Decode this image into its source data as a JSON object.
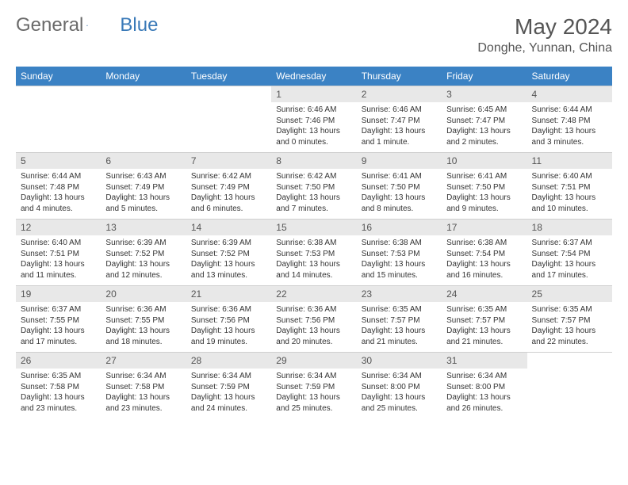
{
  "brand": {
    "part1": "General",
    "part2": "Blue"
  },
  "title": "May 2024",
  "location": "Donghe, Yunnan, China",
  "colors": {
    "header_bg": "#3b82c4",
    "header_text": "#ffffff",
    "daynum_bg": "#e8e8e8",
    "text": "#333333",
    "title_text": "#555555",
    "logo_gray": "#6a6a6a",
    "logo_blue": "#3a7ab8",
    "border": "#cfcfcf"
  },
  "weekdays": [
    "Sunday",
    "Monday",
    "Tuesday",
    "Wednesday",
    "Thursday",
    "Friday",
    "Saturday"
  ],
  "cells": [
    {
      "empty": true
    },
    {
      "empty": true
    },
    {
      "empty": true
    },
    {
      "n": "1",
      "sr": "6:46 AM",
      "ss": "7:46 PM",
      "dl": "13 hours and 0 minutes."
    },
    {
      "n": "2",
      "sr": "6:46 AM",
      "ss": "7:47 PM",
      "dl": "13 hours and 1 minute."
    },
    {
      "n": "3",
      "sr": "6:45 AM",
      "ss": "7:47 PM",
      "dl": "13 hours and 2 minutes."
    },
    {
      "n": "4",
      "sr": "6:44 AM",
      "ss": "7:48 PM",
      "dl": "13 hours and 3 minutes."
    },
    {
      "n": "5",
      "sr": "6:44 AM",
      "ss": "7:48 PM",
      "dl": "13 hours and 4 minutes."
    },
    {
      "n": "6",
      "sr": "6:43 AM",
      "ss": "7:49 PM",
      "dl": "13 hours and 5 minutes."
    },
    {
      "n": "7",
      "sr": "6:42 AM",
      "ss": "7:49 PM",
      "dl": "13 hours and 6 minutes."
    },
    {
      "n": "8",
      "sr": "6:42 AM",
      "ss": "7:50 PM",
      "dl": "13 hours and 7 minutes."
    },
    {
      "n": "9",
      "sr": "6:41 AM",
      "ss": "7:50 PM",
      "dl": "13 hours and 8 minutes."
    },
    {
      "n": "10",
      "sr": "6:41 AM",
      "ss": "7:50 PM",
      "dl": "13 hours and 9 minutes."
    },
    {
      "n": "11",
      "sr": "6:40 AM",
      "ss": "7:51 PM",
      "dl": "13 hours and 10 minutes."
    },
    {
      "n": "12",
      "sr": "6:40 AM",
      "ss": "7:51 PM",
      "dl": "13 hours and 11 minutes."
    },
    {
      "n": "13",
      "sr": "6:39 AM",
      "ss": "7:52 PM",
      "dl": "13 hours and 12 minutes."
    },
    {
      "n": "14",
      "sr": "6:39 AM",
      "ss": "7:52 PM",
      "dl": "13 hours and 13 minutes."
    },
    {
      "n": "15",
      "sr": "6:38 AM",
      "ss": "7:53 PM",
      "dl": "13 hours and 14 minutes."
    },
    {
      "n": "16",
      "sr": "6:38 AM",
      "ss": "7:53 PM",
      "dl": "13 hours and 15 minutes."
    },
    {
      "n": "17",
      "sr": "6:38 AM",
      "ss": "7:54 PM",
      "dl": "13 hours and 16 minutes."
    },
    {
      "n": "18",
      "sr": "6:37 AM",
      "ss": "7:54 PM",
      "dl": "13 hours and 17 minutes."
    },
    {
      "n": "19",
      "sr": "6:37 AM",
      "ss": "7:55 PM",
      "dl": "13 hours and 17 minutes."
    },
    {
      "n": "20",
      "sr": "6:36 AM",
      "ss": "7:55 PM",
      "dl": "13 hours and 18 minutes."
    },
    {
      "n": "21",
      "sr": "6:36 AM",
      "ss": "7:56 PM",
      "dl": "13 hours and 19 minutes."
    },
    {
      "n": "22",
      "sr": "6:36 AM",
      "ss": "7:56 PM",
      "dl": "13 hours and 20 minutes."
    },
    {
      "n": "23",
      "sr": "6:35 AM",
      "ss": "7:57 PM",
      "dl": "13 hours and 21 minutes."
    },
    {
      "n": "24",
      "sr": "6:35 AM",
      "ss": "7:57 PM",
      "dl": "13 hours and 21 minutes."
    },
    {
      "n": "25",
      "sr": "6:35 AM",
      "ss": "7:57 PM",
      "dl": "13 hours and 22 minutes."
    },
    {
      "n": "26",
      "sr": "6:35 AM",
      "ss": "7:58 PM",
      "dl": "13 hours and 23 minutes."
    },
    {
      "n": "27",
      "sr": "6:34 AM",
      "ss": "7:58 PM",
      "dl": "13 hours and 23 minutes."
    },
    {
      "n": "28",
      "sr": "6:34 AM",
      "ss": "7:59 PM",
      "dl": "13 hours and 24 minutes."
    },
    {
      "n": "29",
      "sr": "6:34 AM",
      "ss": "7:59 PM",
      "dl": "13 hours and 25 minutes."
    },
    {
      "n": "30",
      "sr": "6:34 AM",
      "ss": "8:00 PM",
      "dl": "13 hours and 25 minutes."
    },
    {
      "n": "31",
      "sr": "6:34 AM",
      "ss": "8:00 PM",
      "dl": "13 hours and 26 minutes."
    },
    {
      "empty": true
    }
  ],
  "labels": {
    "sunrise": "Sunrise: ",
    "sunset": "Sunset: ",
    "daylight": "Daylight: "
  }
}
